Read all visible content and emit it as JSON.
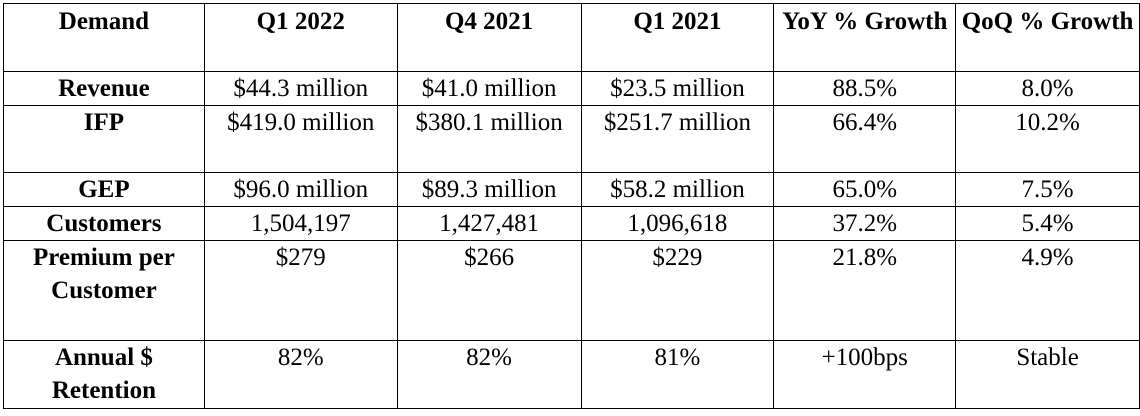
{
  "table": {
    "headers": [
      "Demand",
      "Q1 2022",
      "Q4 2021",
      "Q1 2021",
      "YoY % Growth",
      "QoQ % Growth"
    ],
    "rows": [
      {
        "label": "Revenue",
        "values": [
          "$44.3 million",
          "$41.0 million",
          "$23.5 million",
          "88.5%",
          "8.0%"
        ]
      },
      {
        "label": "IFP",
        "values": [
          "$419.0 million",
          "$380.1 million",
          "$251.7 million",
          "66.4%",
          "10.2%"
        ]
      },
      {
        "label": "GEP",
        "values": [
          "$96.0 million",
          "$89.3 million",
          "$58.2 million",
          "65.0%",
          "7.5%"
        ]
      },
      {
        "label": "Customers",
        "values": [
          "1,504,197",
          "1,427,481",
          "1,096,618",
          "37.2%",
          "5.4%"
        ]
      },
      {
        "label": "Premium per Customer",
        "values": [
          "$279",
          "$266",
          "$229",
          "21.8%",
          "4.9%"
        ]
      },
      {
        "label": "Annual $ Retention",
        "values": [
          "82%",
          "82%",
          "81%",
          "+100bps",
          "Stable"
        ]
      }
    ]
  }
}
